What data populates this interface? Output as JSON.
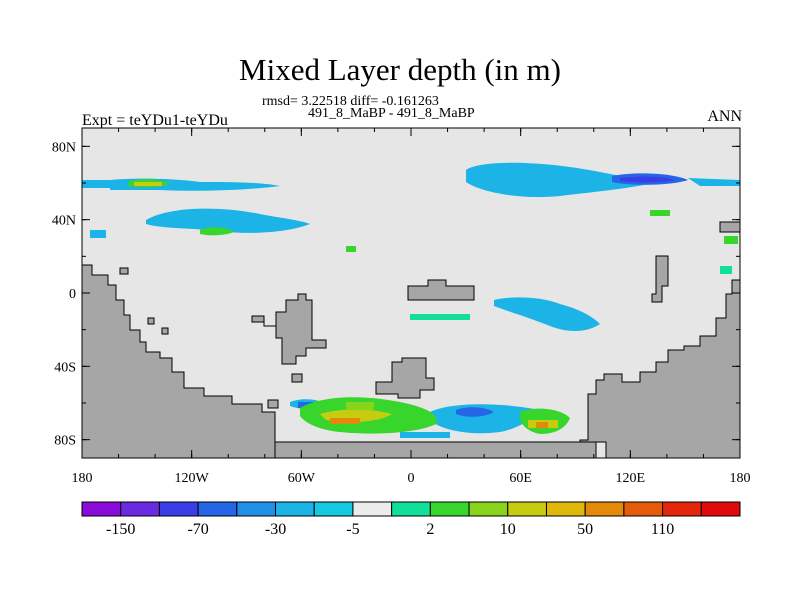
{
  "chart_data": {
    "type": "heatmap",
    "title": "Mixed Layer depth (in m)",
    "subtitle": "rmsd= 3.22518 diff= -0.161263",
    "subtitle2": "491_8_MaBP - 491_8_MaBP",
    "left_label": "Expt = teYDu1-teYDu",
    "right_label": "ANN",
    "x_ticks": [
      "180",
      "120W",
      "60W",
      "0",
      "60E",
      "120E",
      "180"
    ],
    "x_values": [
      -180,
      -120,
      -60,
      0,
      60,
      120,
      180
    ],
    "y_ticks": [
      "80N",
      "40N",
      "0",
      "40S",
      "80S"
    ],
    "y_values": [
      80,
      40,
      0,
      -40,
      -80
    ],
    "xlim": [
      -180,
      180
    ],
    "ylim": [
      -90,
      90
    ],
    "colorbar": {
      "colors": [
        "#8a0ad9",
        "#6a2ae0",
        "#3a3ee6",
        "#2466e6",
        "#1e90e6",
        "#1cb4e6",
        "#17c8e0",
        "#ececec",
        "#12e09a",
        "#38d62c",
        "#88d41c",
        "#c8cc10",
        "#e0b80c",
        "#e48a0a",
        "#e45c0a",
        "#e4260c",
        "#e00a0a"
      ],
      "labels": [
        "-150",
        "-70",
        "-30",
        "-5",
        "2",
        "10",
        "50",
        "110"
      ],
      "label_positions": [
        1,
        3,
        5,
        7,
        9,
        11,
        13,
        15
      ]
    }
  }
}
